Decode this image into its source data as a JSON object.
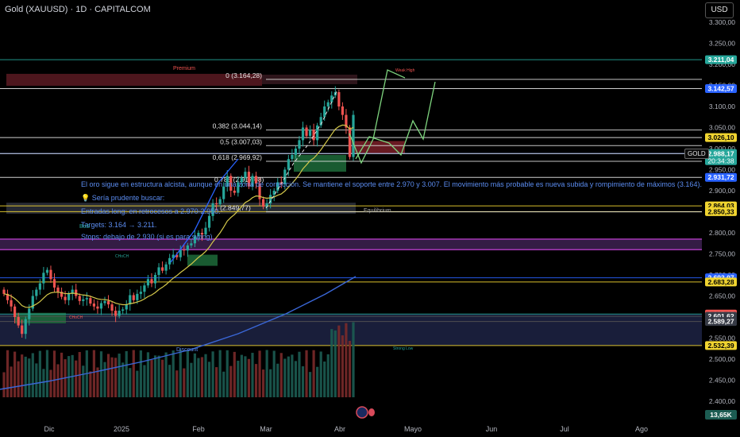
{
  "header": {
    "title": "Gold (XAUUSD) · 1D · CAPITALCOM",
    "currency": "USD",
    "symbol_tag": "GOLD"
  },
  "colors": {
    "up": "#26a69a",
    "down": "#ef5350",
    "ema_fast": "#d4c84a",
    "ema_slow": "#3a67d8",
    "blue_line": "#2962ff",
    "projection": "#7ed47e"
  },
  "chart_data": {
    "type": "candlestick",
    "y_axis": {
      "range": [
        2340,
        3330
      ],
      "ticks": [
        2400,
        2450,
        2500,
        2550,
        2600,
        2650,
        2700,
        2750,
        2800,
        2850,
        2900,
        2950,
        3000,
        3050,
        3100,
        3150,
        3200,
        3250,
        3300
      ],
      "tick_labels": [
        "2.400,00",
        "2.450,00",
        "2.500,00",
        "2.550,00",
        "2.600,00",
        "2.650,00",
        "2.700,00",
        "2.750,00",
        "2.800,00",
        "2.850,00",
        "2.900,00",
        "2.950,00",
        "3.000,00",
        "3.050,00",
        "3.100,00",
        "3.150,00",
        "3.200,00",
        "3.250,00",
        "3.300,00"
      ]
    },
    "x_axis": {
      "labels": [
        "Dic",
        "2025",
        "Feb",
        "Mar",
        "Abr",
        "Mayo",
        "Jun",
        "Jul",
        "Ago"
      ]
    },
    "candles": {
      "count": 98,
      "start_price": 2655,
      "end_price": 3080,
      "closes": [
        2655,
        2640,
        2625,
        2600,
        2580,
        2560,
        2595,
        2620,
        2650,
        2665,
        2680,
        2705,
        2712,
        2690,
        2670,
        2660,
        2648,
        2640,
        2655,
        2665,
        2650,
        2638,
        2642,
        2645,
        2632,
        2625,
        2620,
        2633,
        2638,
        2630,
        2615,
        2603,
        2615,
        2618,
        2630,
        2652,
        2640,
        2655,
        2660,
        2675,
        2690,
        2680,
        2700,
        2718,
        2710,
        2725,
        2740,
        2748,
        2742,
        2760,
        2758,
        2770,
        2775,
        2792,
        2800,
        2796,
        2812,
        2840,
        2870,
        2868,
        2880,
        2910,
        2935,
        2900,
        2895,
        2920,
        2930,
        2945,
        2910,
        2935,
        2917,
        2880,
        2862,
        2870,
        2890,
        2900,
        2920,
        2915,
        2950,
        2975,
        2985,
        3000,
        3020,
        3050,
        3030,
        3045,
        3020,
        3055,
        3075,
        3100,
        3110,
        3126,
        3134,
        3100,
        3080,
        3050,
        2980,
        3080
      ]
    },
    "horizontal_levels": [
      {
        "price": 3211.04,
        "label": "3.211,04",
        "color": "#26a69a"
      },
      {
        "price": 3142.57,
        "label": "3.142,57",
        "color": "#2962ff"
      },
      {
        "price": 3026.1,
        "label": "3.026,10",
        "color": "#f0d430"
      },
      {
        "price": 2988.2,
        "label": "2.988,20",
        "color": "#26a69a"
      },
      {
        "price": 2988.17,
        "label": "2.988,17",
        "color": "#26a69a",
        "extra": "20:34:38"
      },
      {
        "price": 2931.72,
        "label": "2.931,72",
        "color": "#2962ff"
      },
      {
        "price": 2864.03,
        "label": "2.864,03",
        "color": "#f0d430"
      },
      {
        "price": 2850.33,
        "label": "2.850,33",
        "color": "#f0d430"
      },
      {
        "price": 2693.07,
        "label": "2.693,07",
        "color": "#2962ff"
      },
      {
        "price": 2683.28,
        "label": "2.683,28",
        "color": "#f0d430"
      },
      {
        "price": 2607.07,
        "label": "2.607,07",
        "color": "#ef5350"
      },
      {
        "price": 2601.62,
        "label": "2.601,62",
        "color": "#363a45"
      },
      {
        "price": 2589.27,
        "label": "2.589,27",
        "color": "#363a45"
      },
      {
        "price": 2532.39,
        "label": "2.532,39",
        "color": "#f0d430"
      }
    ],
    "fib_levels": [
      {
        "ratio": "0",
        "price": 3164.28,
        "label": "0 (3.164,28)"
      },
      {
        "ratio": "0,382",
        "price": 3044.14,
        "label": "0,382 (3.044,14)"
      },
      {
        "ratio": "0,5",
        "price": 3007.03,
        "label": "0,5 (3.007,03)"
      },
      {
        "ratio": "0,618",
        "price": 2969.92,
        "label": "0,618 (2.969,92)"
      },
      {
        "ratio": "0,786",
        "price": 2917.08,
        "label": "0,786 (2.917,08)"
      },
      {
        "ratio": "1",
        "price": 2849.77,
        "label": "1 (2.849,77)"
      }
    ],
    "volume_label": "13,65K",
    "annotations": {
      "premium": "Premium",
      "discount": "Discount",
      "equilibrium": "Equilibrium",
      "weak_high": "Weak High",
      "strong_low": "Strong Low",
      "bos": "BoS",
      "choch": "CHoCH"
    }
  },
  "notes": [
    "El oro sigue en estructura alcista, aunque en una zona de corrección. Se mantiene el soporte entre 2.970 y 3.007. El movimiento más probable es nueva subida y rompimiento de máximos (3.164).",
    "💡 Sería prudente buscar:",
    "Entradas long: en retrocesos a 2.970-2.950.",
    "Targets: 3.164 → 3.211.",
    "Stops: debajo de 2.930 (si es para swing)"
  ]
}
